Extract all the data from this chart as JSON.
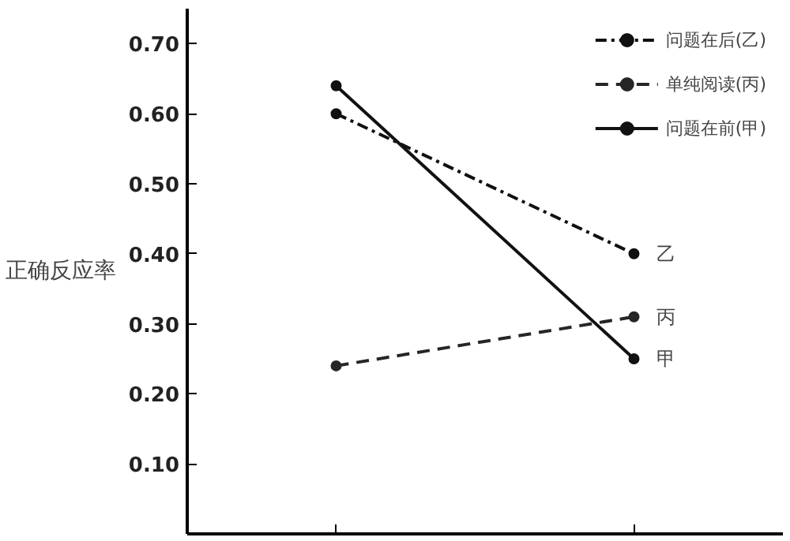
{
  "chart_data": {
    "type": "line",
    "ylabel": "正确反应率",
    "categories": [
      null,
      null
    ],
    "series": [
      {
        "name": "问题在后(乙)",
        "color": "#101010",
        "values": [
          0.6,
          0.4
        ],
        "line_style": "dashdot"
      },
      {
        "name": "单纯阅读(丙)",
        "color": "#262626",
        "values": [
          0.24,
          0.31
        ],
        "line_style": "dashed"
      },
      {
        "name": "问题在前(甲)",
        "color": "#111111",
        "values": [
          0.64,
          0.25
        ],
        "line_style": "solid"
      }
    ],
    "annotations": [
      "乙",
      "丙",
      "甲"
    ],
    "ylim": [
      0,
      0.75
    ],
    "yticks": [
      {
        "value": 0.1,
        "label": "0.10"
      },
      {
        "value": 0.2,
        "label": "0.20"
      },
      {
        "value": 0.3,
        "label": "0.30"
      },
      {
        "value": 0.4,
        "label": "0.40"
      },
      {
        "value": 0.5,
        "label": "0.50"
      },
      {
        "value": 0.6,
        "label": "0.60"
      },
      {
        "value": 0.7,
        "label": "0.70"
      }
    ],
    "tick_labels": "y",
    "grid": false,
    "legend": "top right",
    "marker": "circle"
  }
}
